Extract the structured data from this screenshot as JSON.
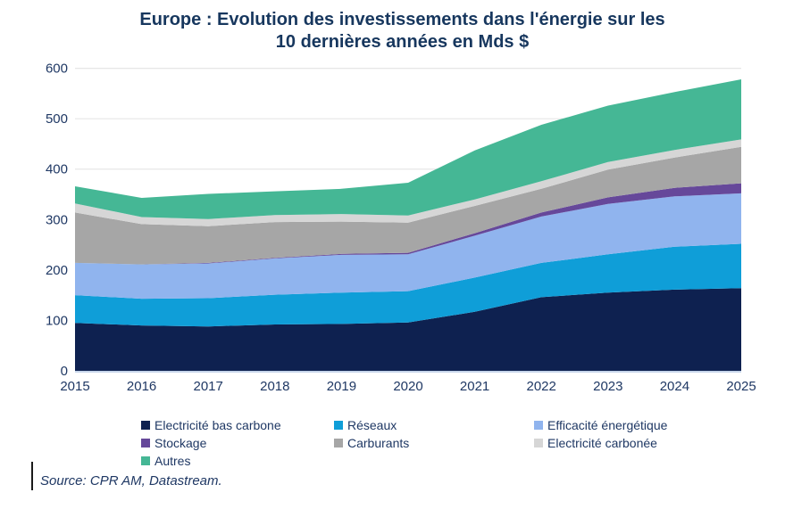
{
  "title": {
    "line1": "Europe : Evolution des investissements dans l'énergie sur les",
    "line2": "10 dernières années en Mds $"
  },
  "source": "Source: CPR AM, Datastream.",
  "colors": {
    "title_text": "#17375E",
    "axis_text": "#1F3864",
    "legend_text": "#1F3864",
    "gridline": "#E6E6E6",
    "baseline": "#B4C7E4"
  },
  "chart_data": {
    "type": "area",
    "stacked": true,
    "title": "Europe : Evolution des investissements dans l'énergie sur les 10 dernières années en Mds $",
    "xlabel": "",
    "ylabel": "",
    "x": [
      2015,
      2016,
      2017,
      2018,
      2019,
      2020,
      2021,
      2022,
      2023,
      2024,
      2025
    ],
    "ylim": [
      0,
      600
    ],
    "yticks": [
      0,
      100,
      200,
      300,
      400,
      500,
      600
    ],
    "grid": "horizontal",
    "legend_position": "bottom",
    "series": [
      {
        "name": "Electricité bas carbone",
        "color": "#0E2150",
        "values": [
          95,
          90,
          88,
          92,
          93,
          96,
          117,
          146,
          155,
          161,
          164
        ]
      },
      {
        "name": "Réseaux",
        "color": "#0F9ED8",
        "values": [
          55,
          53,
          56,
          59,
          62,
          62,
          68,
          68,
          76,
          85,
          88
        ]
      },
      {
        "name": "Efficacité énergétique",
        "color": "#90B4EE",
        "values": [
          64,
          68,
          69,
          72,
          75,
          73,
          83,
          92,
          100,
          100,
          100
        ]
      },
      {
        "name": "Stockage",
        "color": "#66489A",
        "values": [
          0,
          0,
          1,
          1,
          2,
          3,
          5,
          8,
          13,
          17,
          20
        ]
      },
      {
        "name": "Carburants",
        "color": "#A6A6A6",
        "values": [
          100,
          80,
          73,
          71,
          64,
          60,
          54,
          47,
          55,
          60,
          72
        ]
      },
      {
        "name": "Electricité carbonée",
        "color": "#D6D6D6",
        "values": [
          18,
          14,
          14,
          14,
          15,
          14,
          13,
          15,
          15,
          15,
          15
        ]
      },
      {
        "name": "Autres",
        "color": "#45B795",
        "values": [
          34,
          38,
          50,
          47,
          50,
          65,
          97,
          112,
          112,
          115,
          119
        ]
      }
    ],
    "totals": [
      366,
      343,
      351,
      356,
      361,
      373,
      437,
      488,
      526,
      553,
      578
    ]
  }
}
